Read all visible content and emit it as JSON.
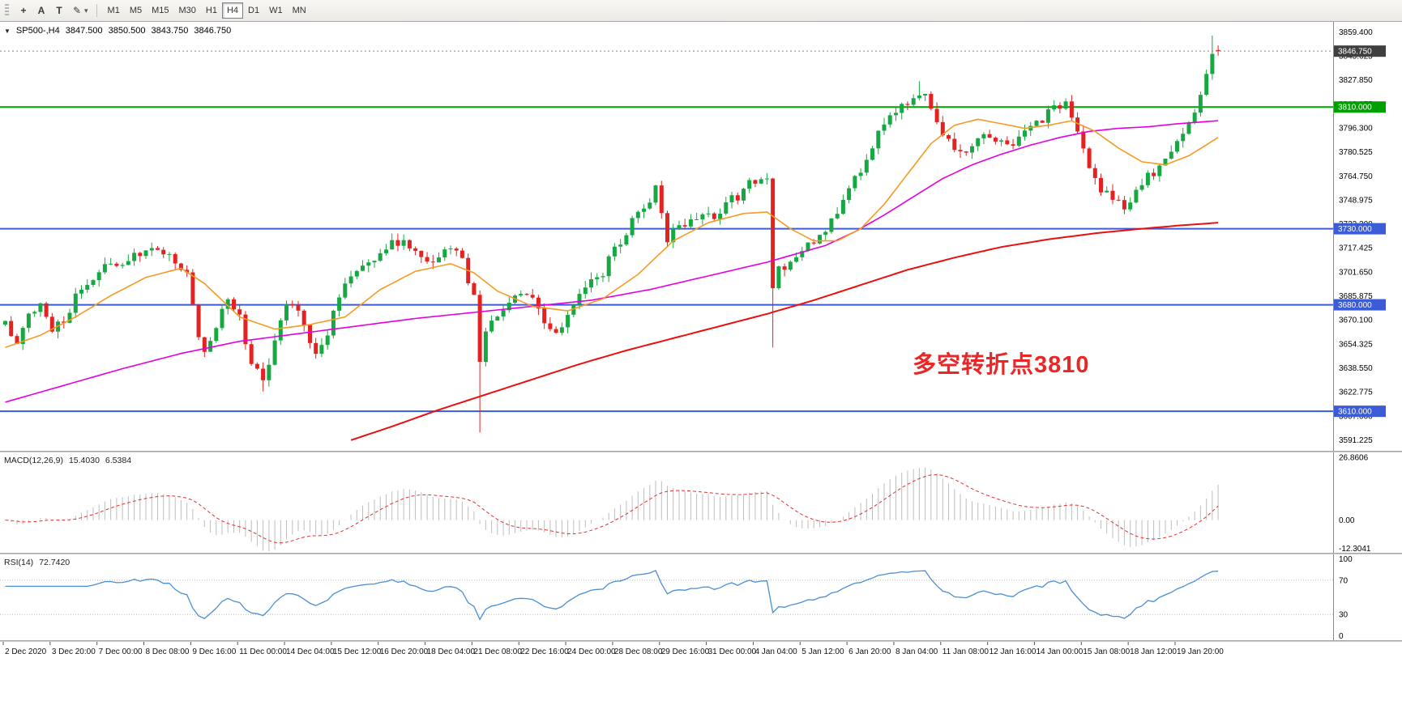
{
  "colors": {
    "up": "#18a843",
    "down": "#e32222",
    "ma_fast_orange": "#f59a23",
    "ma_mid_magenta": "#e300e3",
    "ma_slow_red": "#e81010",
    "hline_green": "#00a000",
    "hline_blue": "#3c5bd7",
    "price_tag_bg": "#3f3f3f",
    "macd_hist": "#bdbdbd",
    "macd_signal": "#e03030",
    "rsi_line": "#4a8fd3",
    "annotation_red": "#e82828",
    "axis_text": "#000000"
  },
  "toolbar": {
    "tools": [
      {
        "name": "crosshair",
        "glyph": "+"
      },
      {
        "name": "text-label",
        "glyph": "A"
      },
      {
        "name": "text-frame",
        "glyph": "T"
      },
      {
        "name": "drawing-tools",
        "glyph": "✎"
      }
    ],
    "dropdown_caret": "▾",
    "timeframes": [
      {
        "label": "M1"
      },
      {
        "label": "M5"
      },
      {
        "label": "M15"
      },
      {
        "label": "M30"
      },
      {
        "label": "H1"
      },
      {
        "label": "H4",
        "active": true
      },
      {
        "label": "D1"
      },
      {
        "label": "W1"
      },
      {
        "label": "MN"
      }
    ]
  },
  "header": {
    "collapse_arrow": "▼",
    "symbol": "SP500-,H4",
    "open": "3847.500",
    "high": "3850.500",
    "low": "3843.750",
    "close": "3846.750"
  },
  "price_axis": {
    "ticks": [
      "3859.400",
      "3843.625",
      "3827.850",
      "3812.075",
      "3796.300",
      "3780.525",
      "3764.750",
      "3748.975",
      "3733.200",
      "3717.425",
      "3701.650",
      "3685.875",
      "3670.100",
      "3654.325",
      "3638.550",
      "3622.775",
      "3607.000",
      "3591.225"
    ],
    "current_price": "3846.750"
  },
  "hlines": [
    {
      "price": 3810.0,
      "label": "3810.000",
      "color_key": "hline_green"
    },
    {
      "price": 3730.0,
      "label": "3730.000",
      "color_key": "hline_blue"
    },
    {
      "price": 3680.0,
      "label": "3680.000",
      "color_key": "hline_blue"
    },
    {
      "price": 3610.0,
      "label": "3610.000",
      "color_key": "hline_blue"
    }
  ],
  "annotation": {
    "text": "多空转折点3810"
  },
  "macd": {
    "label": "MACD(12,26,9)",
    "value_main": "15.4030",
    "value_signal": "6.5384",
    "axis": [
      "26.8606",
      "0.00",
      "-12.3041"
    ],
    "axis_values": [
      26.8606,
      0.0,
      -12.3041
    ]
  },
  "rsi": {
    "label": "RSI(14)",
    "value": "72.7420",
    "axis": [
      "100",
      "70",
      "30",
      "0"
    ],
    "axis_values": [
      100,
      70,
      30,
      0
    ],
    "levels": [
      70,
      30
    ]
  },
  "time_axis": [
    "2 Dec 2020",
    "3 Dec 20:00",
    "7 Dec 00:00",
    "8 Dec 08:00",
    "9 Dec 16:00",
    "11 Dec 00:00",
    "14 Dec 04:00",
    "15 Dec 12:00",
    "16 Dec 20:00",
    "18 Dec 04:00",
    "21 Dec 08:00",
    "22 Dec 16:00",
    "24 Dec 00:00",
    "28 Dec 08:00",
    "29 Dec 16:00",
    "31 Dec 00:00",
    "4 Jan 04:00",
    "5 Jan 12:00",
    "6 Jan 20:00",
    "8 Jan 04:00",
    "11 Jan 08:00",
    "12 Jan 16:00",
    "14 Jan 00:00",
    "15 Jan 08:00",
    "18 Jan 12:00",
    "19 Jan 20:00"
  ],
  "chart_data": {
    "type": "candlestick",
    "symbol": "SP500-",
    "timeframe": "H4",
    "bars": 208,
    "ylim": [
      3584,
      3866
    ],
    "macd_ylim": [
      -14,
      29
    ],
    "macd_params": [
      12,
      26,
      9
    ],
    "rsi_period": 14,
    "hline_values": [
      3810,
      3730,
      3680,
      3610
    ],
    "last_bar": {
      "open": 3847.5,
      "high": 3850.5,
      "low": 3843.75,
      "close": 3846.75
    },
    "close_waypoints": [
      [
        0,
        3668
      ],
      [
        2,
        3654
      ],
      [
        4,
        3672
      ],
      [
        6,
        3682
      ],
      [
        8,
        3664
      ],
      [
        10,
        3670
      ],
      [
        13,
        3692
      ],
      [
        16,
        3702
      ],
      [
        19,
        3707
      ],
      [
        23,
        3712
      ],
      [
        26,
        3719
      ],
      [
        28,
        3714
      ],
      [
        31,
        3700
      ],
      [
        33,
        3662
      ],
      [
        34,
        3650
      ],
      [
        36,
        3668
      ],
      [
        38,
        3682
      ],
      [
        40,
        3672
      ],
      [
        42,
        3640
      ],
      [
        44,
        3630
      ],
      [
        46,
        3658
      ],
      [
        48,
        3682
      ],
      [
        50,
        3676
      ],
      [
        53,
        3649
      ],
      [
        55,
        3662
      ],
      [
        58,
        3697
      ],
      [
        61,
        3706
      ],
      [
        64,
        3714
      ],
      [
        67,
        3722
      ],
      [
        70,
        3716
      ],
      [
        72,
        3708
      ],
      [
        75,
        3717
      ],
      [
        78,
        3710
      ],
      [
        80,
        3685
      ],
      [
        81,
        3642
      ],
      [
        82,
        3661
      ],
      [
        84,
        3672
      ],
      [
        86,
        3679
      ],
      [
        88,
        3687
      ],
      [
        90,
        3688
      ],
      [
        92,
        3668
      ],
      [
        94,
        3659
      ],
      [
        96,
        3673
      ],
      [
        98,
        3684
      ],
      [
        100,
        3695
      ],
      [
        102,
        3702
      ],
      [
        104,
        3716
      ],
      [
        106,
        3728
      ],
      [
        108,
        3740
      ],
      [
        110,
        3750
      ],
      [
        111,
        3756
      ],
      [
        112,
        3740
      ],
      [
        113,
        3724
      ],
      [
        115,
        3730
      ],
      [
        117,
        3737
      ],
      [
        119,
        3741
      ],
      [
        121,
        3738
      ],
      [
        123,
        3746
      ],
      [
        125,
        3752
      ],
      [
        127,
        3760
      ],
      [
        129,
        3766
      ],
      [
        130,
        3764
      ],
      [
        131,
        3694
      ],
      [
        132,
        3702
      ],
      [
        134,
        3708
      ],
      [
        136,
        3714
      ],
      [
        138,
        3721
      ],
      [
        140,
        3731
      ],
      [
        142,
        3742
      ],
      [
        144,
        3756
      ],
      [
        146,
        3770
      ],
      [
        148,
        3786
      ],
      [
        150,
        3800
      ],
      [
        152,
        3808
      ],
      [
        154,
        3814
      ],
      [
        156,
        3821
      ],
      [
        157,
        3816
      ],
      [
        159,
        3800
      ],
      [
        161,
        3788
      ],
      [
        163,
        3781
      ],
      [
        165,
        3786
      ],
      [
        167,
        3793
      ],
      [
        169,
        3788
      ],
      [
        171,
        3783
      ],
      [
        173,
        3790
      ],
      [
        175,
        3797
      ],
      [
        177,
        3803
      ],
      [
        179,
        3808
      ],
      [
        181,
        3812
      ],
      [
        183,
        3794
      ],
      [
        185,
        3772
      ],
      [
        187,
        3757
      ],
      [
        189,
        3747
      ],
      [
        191,
        3744
      ],
      [
        193,
        3757
      ],
      [
        195,
        3764
      ],
      [
        197,
        3770
      ],
      [
        199,
        3780
      ],
      [
        201,
        3791
      ],
      [
        202,
        3798
      ],
      [
        203,
        3806
      ],
      [
        204,
        3818
      ],
      [
        205,
        3832
      ],
      [
        206,
        3845
      ],
      [
        207,
        3846.75
      ]
    ],
    "wick_overrides": [
      {
        "bar": 44,
        "low": 3623
      },
      {
        "bar": 81,
        "low": 3596
      },
      {
        "bar": 131,
        "low": 3652
      },
      {
        "bar": 156,
        "high": 3827
      },
      {
        "bar": 206,
        "high": 3857
      }
    ],
    "ma_fast_waypoints": [
      [
        0,
        3652
      ],
      [
        6,
        3660
      ],
      [
        12,
        3672
      ],
      [
        18,
        3686
      ],
      [
        24,
        3698
      ],
      [
        30,
        3704
      ],
      [
        34,
        3694
      ],
      [
        40,
        3672
      ],
      [
        46,
        3664
      ],
      [
        52,
        3667
      ],
      [
        58,
        3672
      ],
      [
        64,
        3690
      ],
      [
        70,
        3702
      ],
      [
        76,
        3707
      ],
      [
        80,
        3701
      ],
      [
        84,
        3689
      ],
      [
        90,
        3679
      ],
      [
        96,
        3676
      ],
      [
        102,
        3684
      ],
      [
        108,
        3700
      ],
      [
        114,
        3722
      ],
      [
        120,
        3734
      ],
      [
        126,
        3740
      ],
      [
        130,
        3741
      ],
      [
        134,
        3730
      ],
      [
        138,
        3722
      ],
      [
        142,
        3722
      ],
      [
        146,
        3730
      ],
      [
        150,
        3746
      ],
      [
        154,
        3766
      ],
      [
        158,
        3786
      ],
      [
        162,
        3798
      ],
      [
        166,
        3802
      ],
      [
        170,
        3799
      ],
      [
        174,
        3796
      ],
      [
        178,
        3798
      ],
      [
        182,
        3801
      ],
      [
        186,
        3794
      ],
      [
        190,
        3783
      ],
      [
        194,
        3774
      ],
      [
        198,
        3772
      ],
      [
        202,
        3778
      ],
      [
        207,
        3790
      ]
    ],
    "ma_mid_waypoints": [
      [
        0,
        3616
      ],
      [
        10,
        3627
      ],
      [
        20,
        3638
      ],
      [
        30,
        3648
      ],
      [
        40,
        3656
      ],
      [
        50,
        3661
      ],
      [
        60,
        3666
      ],
      [
        70,
        3671
      ],
      [
        80,
        3675
      ],
      [
        90,
        3679
      ],
      [
        100,
        3683
      ],
      [
        110,
        3690
      ],
      [
        120,
        3699
      ],
      [
        130,
        3708
      ],
      [
        140,
        3719
      ],
      [
        145,
        3728
      ],
      [
        150,
        3739
      ],
      [
        155,
        3751
      ],
      [
        160,
        3763
      ],
      [
        165,
        3772
      ],
      [
        170,
        3779
      ],
      [
        175,
        3785
      ],
      [
        180,
        3790
      ],
      [
        185,
        3794
      ],
      [
        190,
        3796
      ],
      [
        195,
        3797
      ],
      [
        200,
        3799
      ],
      [
        207,
        3801
      ]
    ],
    "ma_slow_start": 59,
    "ma_slow_waypoints": [
      [
        59,
        3591
      ],
      [
        66,
        3600
      ],
      [
        74,
        3611
      ],
      [
        82,
        3621
      ],
      [
        90,
        3631
      ],
      [
        98,
        3641
      ],
      [
        106,
        3650
      ],
      [
        114,
        3658
      ],
      [
        122,
        3666
      ],
      [
        130,
        3674
      ],
      [
        138,
        3683
      ],
      [
        146,
        3693
      ],
      [
        154,
        3703
      ],
      [
        162,
        3711
      ],
      [
        170,
        3718
      ],
      [
        178,
        3723
      ],
      [
        186,
        3727
      ],
      [
        194,
        3730
      ],
      [
        200,
        3732
      ],
      [
        207,
        3734
      ]
    ]
  }
}
